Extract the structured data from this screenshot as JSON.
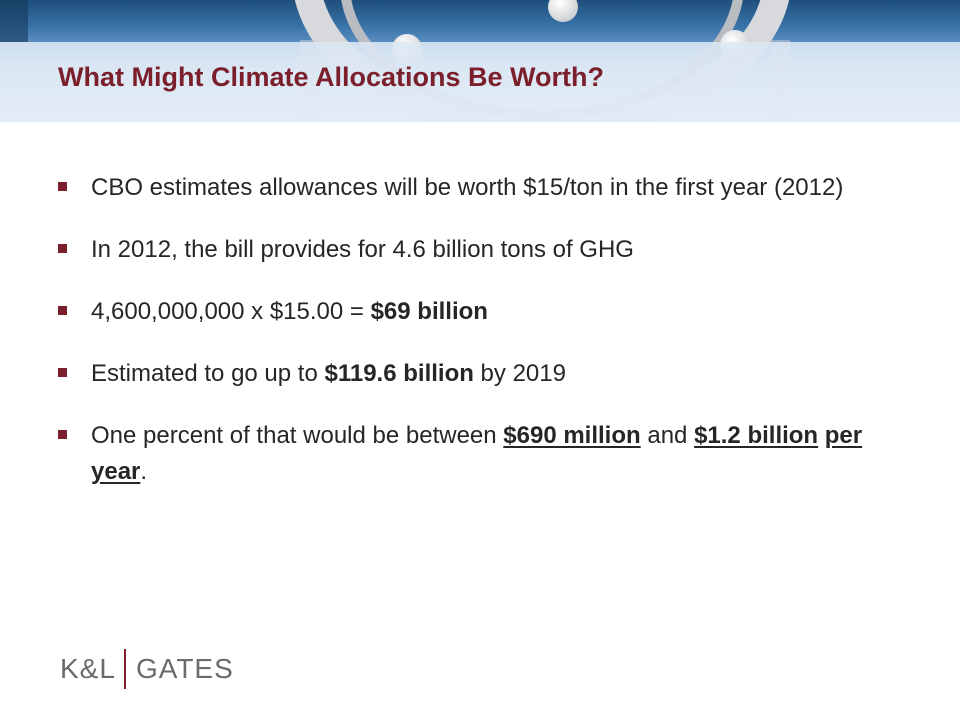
{
  "slide": {
    "title": "What Might Climate Allocations Be Worth?"
  },
  "bullets": [
    {
      "text_a": "CBO estimates allowances will be worth $15/ton in the first year (2012)"
    },
    {
      "text_a": "In 2012, the bill provides for 4.6 billion tons of GHG"
    },
    {
      "text_a": "4,600,000,000 x $15.00 = ",
      "bold_a": "$69 billion"
    },
    {
      "text_a": "Estimated to go up to ",
      "bold_a": "$119.6 billion",
      "text_b": " by 2019"
    },
    {
      "text_a": "One percent of that would be between ",
      "bold_a": "$690 million",
      "text_b": " and ",
      "bold_b": "$1.2 billion",
      "text_c": " ",
      "bold_c": "per year",
      "text_d": "."
    }
  ],
  "logo": {
    "left": "K&L",
    "right": "GATES"
  },
  "colors": {
    "title": "#7b1f2c",
    "bullet_marker": "#7b1f2c",
    "body_text": "#262626",
    "logo_text": "#6b6b6b"
  }
}
